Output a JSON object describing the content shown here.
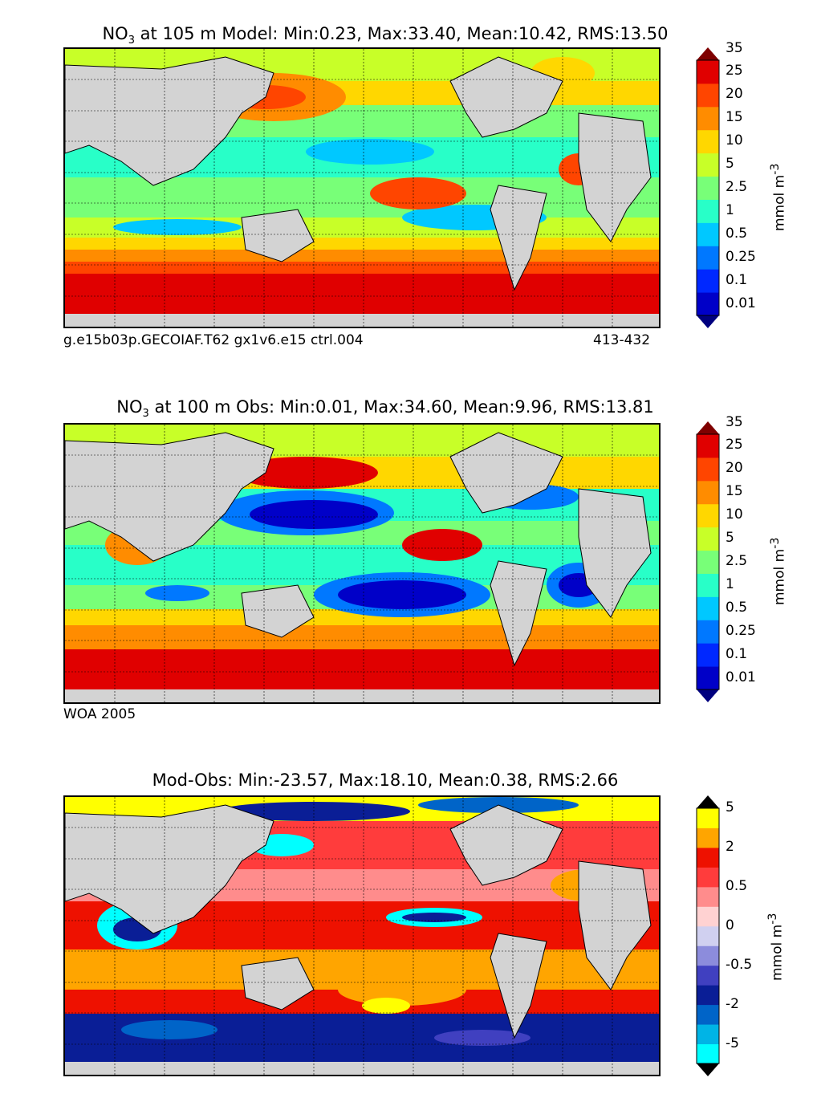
{
  "panels": [
    {
      "title_prefix": "NO",
      "title_sub": "3",
      "title_rest": " at 105 m Model: Min:0.23, Max:33.40, Mean:10.42, RMS:13.50",
      "footer_left": "g.e15b03p.GECOIAF.T62 gx1v6.e15 ctrl.004",
      "footer_right": "413-432",
      "unit": "mmol m",
      "unit_sup": "-3"
    },
    {
      "title_prefix": "NO",
      "title_sub": "3",
      "title_rest": " at 100 m Obs: Min:0.01, Max:34.60, Mean:9.96, RMS:13.81",
      "footer_left": "WOA 2005",
      "footer_right": "",
      "unit": "mmol m",
      "unit_sup": "-3"
    },
    {
      "title_prefix": "",
      "title_sub": "",
      "title_rest": "Mod-Obs: Min:-23.57, Max:18.10, Mean:0.38, RMS:2.66",
      "footer_left": "",
      "footer_right": "",
      "unit": "mmol m",
      "unit_sup": "-3"
    }
  ],
  "chart_data": [
    {
      "type": "heatmap",
      "title": "NO3 at 105 m Model: Min:0.23, Max:33.40, Mean:10.42, RMS:13.50",
      "variable": "NO3",
      "depth": "105 m",
      "stats": {
        "min": 0.23,
        "max": 33.4,
        "mean": 10.42,
        "rms": 13.5
      },
      "colorbar": {
        "ticks": [
          "0.01",
          "0.1",
          "0.25",
          "0.5",
          "1",
          "2.5",
          "5",
          "10",
          "15",
          "20",
          "25",
          "35"
        ],
        "colors": [
          "#00007f",
          "#0000c8",
          "#0028ff",
          "#0078ff",
          "#00c8ff",
          "#28ffc8",
          "#78ff78",
          "#c8ff28",
          "#ffd700",
          "#ff8c00",
          "#ff4500",
          "#e00000",
          "#7f0000"
        ],
        "unit": "mmol m-3",
        "extend": "both"
      }
    },
    {
      "type": "heatmap",
      "title": "NO3 at 100 m Obs: Min:0.01, Max:34.60, Mean:9.96, RMS:13.81",
      "variable": "NO3",
      "depth": "100 m",
      "stats": {
        "min": 0.01,
        "max": 34.6,
        "mean": 9.96,
        "rms": 13.81
      },
      "colorbar": {
        "ticks": [
          "0.01",
          "0.1",
          "0.25",
          "0.5",
          "1",
          "2.5",
          "5",
          "10",
          "15",
          "20",
          "25",
          "35"
        ],
        "colors": [
          "#00007f",
          "#0000c8",
          "#0028ff",
          "#0078ff",
          "#00c8ff",
          "#28ffc8",
          "#78ff78",
          "#c8ff28",
          "#ffd700",
          "#ff8c00",
          "#ff4500",
          "#e00000",
          "#7f0000"
        ],
        "unit": "mmol m-3",
        "extend": "both"
      }
    },
    {
      "type": "heatmap",
      "title": "Mod-Obs: Min:-23.57, Max:18.10, Mean:0.38, RMS:2.66",
      "stats": {
        "min": -23.57,
        "max": 18.1,
        "mean": 0.38,
        "rms": 2.66
      },
      "colorbar": {
        "ticks": [
          "-5",
          "-2",
          "-0.5",
          "0",
          "0.5",
          "2",
          "5"
        ],
        "colors": [
          "#000000",
          "#00ffff",
          "#00b4e6",
          "#0064c8",
          "#0a1e96",
          "#4040c0",
          "#8c8cdc",
          "#d0d0f0",
          "#ffd2d2",
          "#ff8c8c",
          "#ff3c3c",
          "#ee1100",
          "#ffa500",
          "#ffff00",
          "#000000"
        ],
        "unit": "mmol m-3",
        "extend": "both"
      }
    }
  ]
}
